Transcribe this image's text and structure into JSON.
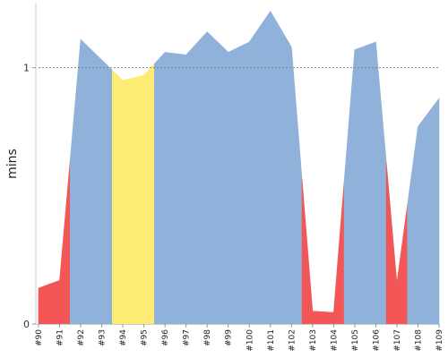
{
  "chart_data": {
    "type": "area",
    "title": "",
    "xlabel": "",
    "ylabel": "mins",
    "ylim": [
      0,
      1.25
    ],
    "yticks": [
      {
        "value": 0,
        "label": "0"
      },
      {
        "value": 1,
        "label": "1"
      }
    ],
    "reference_line": {
      "value": 1,
      "style": "dotted",
      "color": "#888888"
    },
    "grid": false,
    "legend": "none",
    "status_colors": {
      "success": "#8fb1da",
      "failure": "#f25656",
      "unstable": "#fdeb74"
    },
    "categories": [
      "#90",
      "#91",
      "#92",
      "#93",
      "#94",
      "#95",
      "#96",
      "#97",
      "#98",
      "#99",
      "#100",
      "#101",
      "#102",
      "#103",
      "#104",
      "#105",
      "#106",
      "#107",
      "#108",
      "#109"
    ],
    "builds": [
      {
        "label": "#90",
        "value": 0.14,
        "status": "failure"
      },
      {
        "label": "#91",
        "value": 0.17,
        "status": "failure"
      },
      {
        "label": "#92",
        "value": 1.11,
        "status": "success"
      },
      {
        "label": "#93",
        "value": 1.03,
        "status": "success"
      },
      {
        "label": "#94",
        "value": 0.95,
        "status": "unstable"
      },
      {
        "label": "#95",
        "value": 0.97,
        "status": "unstable"
      },
      {
        "label": "#96",
        "value": 1.06,
        "status": "success"
      },
      {
        "label": "#97",
        "value": 1.05,
        "status": "success"
      },
      {
        "label": "#98",
        "value": 1.14,
        "status": "success"
      },
      {
        "label": "#99",
        "value": 1.06,
        "status": "success"
      },
      {
        "label": "#100",
        "value": 1.1,
        "status": "success"
      },
      {
        "label": "#101",
        "value": 1.22,
        "status": "success"
      },
      {
        "label": "#102",
        "value": 1.08,
        "status": "success"
      },
      {
        "label": "#103",
        "value": 0.05,
        "status": "failure"
      },
      {
        "label": "#104",
        "value": 0.045,
        "status": "failure"
      },
      {
        "label": "#105",
        "value": 1.07,
        "status": "success"
      },
      {
        "label": "#106",
        "value": 1.1,
        "status": "success"
      },
      {
        "label": "#107",
        "value": 0.16,
        "status": "failure"
      },
      {
        "label": "#108",
        "value": 0.77,
        "status": "success"
      },
      {
        "label": "#109",
        "value": 0.88,
        "status": "success"
      }
    ]
  }
}
